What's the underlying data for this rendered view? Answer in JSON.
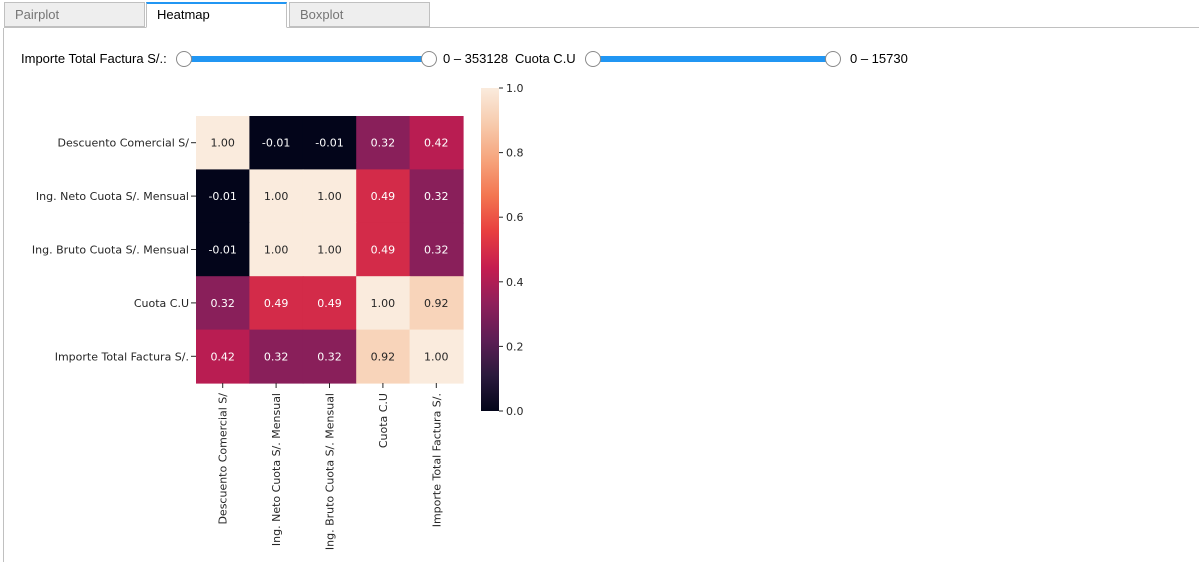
{
  "tabs": [
    {
      "label": "Pairplot",
      "active": false
    },
    {
      "label": "Heatmap",
      "active": true
    },
    {
      "label": "Boxplot",
      "active": false
    }
  ],
  "controls": {
    "importe": {
      "label": "Importe Total Factura S/.:",
      "range_text": "0 – 353128",
      "min": 0,
      "max": 353128
    },
    "cuota": {
      "label": "Cuota C.U",
      "range_text": "0 – 15730",
      "min": 0,
      "max": 15730
    }
  },
  "chart_data": {
    "type": "heatmap",
    "row_labels": [
      "Descuento Comercial S/",
      "Ing. Neto  Cuota S/.  Mensual",
      "Ing. Bruto  Cuota S/. Mensual",
      "Cuota C.U",
      "Importe Total Factura S/."
    ],
    "col_labels": [
      "Descuento Comercial S/",
      "Ing. Neto  Cuota S/.  Mensual",
      "Ing. Bruto  Cuota S/. Mensual",
      "Cuota C.U",
      "Importe Total Factura S/."
    ],
    "values": [
      [
        1.0,
        -0.01,
        -0.01,
        0.32,
        0.42
      ],
      [
        -0.01,
        1.0,
        1.0,
        0.49,
        0.32
      ],
      [
        -0.01,
        1.0,
        1.0,
        0.49,
        0.32
      ],
      [
        0.32,
        0.49,
        0.49,
        1.0,
        0.92
      ],
      [
        0.42,
        0.32,
        0.32,
        0.92,
        1.0
      ]
    ],
    "annotations": [
      [
        "1.00",
        "-0.01",
        "-0.01",
        "0.32",
        "0.42"
      ],
      [
        "-0.01",
        "1.00",
        "1.00",
        "0.49",
        "0.32"
      ],
      [
        "-0.01",
        "1.00",
        "1.00",
        "0.49",
        "0.32"
      ],
      [
        "0.32",
        "0.49",
        "0.49",
        "1.00",
        "0.92"
      ],
      [
        "0.42",
        "0.32",
        "0.32",
        "0.92",
        "1.00"
      ]
    ],
    "colorbar": {
      "min": 0.0,
      "max": 1.0,
      "ticks": [
        0.0,
        0.2,
        0.4,
        0.6,
        0.8,
        1.0
      ],
      "tick_labels": [
        "0.0",
        "0.2",
        "0.4",
        "0.6",
        "0.8",
        "1.0"
      ]
    },
    "colormap": "rocket",
    "colormap_stops": [
      "#03051a",
      "#2b1a3d",
      "#5e1e55",
      "#8f1f5b",
      "#c51d50",
      "#e83f3f",
      "#f37651",
      "#f6a47c",
      "#f7cbad",
      "#faebdd"
    ]
  }
}
